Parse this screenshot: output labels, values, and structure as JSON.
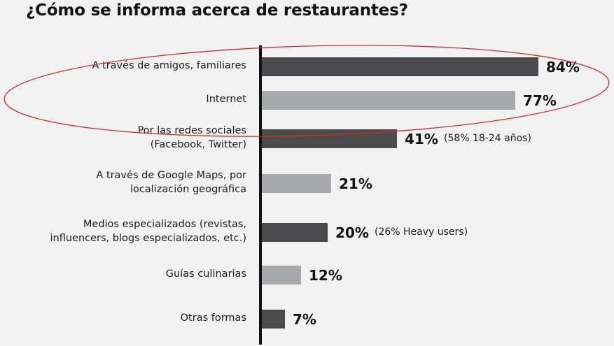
{
  "title": "¿Cómo se informa acerca de restaurantes?",
  "colors": {
    "dark_bar": "#4b4b4d",
    "light_bar": "#a7a9ac",
    "highlight_ellipse": "#d9262c",
    "background": "#f2f2f2"
  },
  "rows": [
    {
      "label_line1": "A través de amigos, familiares",
      "label_line2": "",
      "value_label": "84%",
      "note": ""
    },
    {
      "label_line1": "Internet",
      "label_line2": "",
      "value_label": "77%",
      "note": ""
    },
    {
      "label_line1": "Por las redes sociales",
      "label_line2": "(Facebook, Twitter)",
      "value_label": "41%",
      "note": "(58% 18-24 años)"
    },
    {
      "label_line1": "A través de Google Maps, por",
      "label_line2": "localización geográfica",
      "value_label": "21%",
      "note": ""
    },
    {
      "label_line1": "Medios especializados (revistas,",
      "label_line2": "influencers, blogs especializados, etc.)",
      "value_label": "20%",
      "note": "(26% Heavy users)"
    },
    {
      "label_line1": "Guías culinarias",
      "label_line2": "",
      "value_label": "12%",
      "note": ""
    },
    {
      "label_line1": "Otras formas",
      "label_line2": "",
      "value_label": "7%",
      "note": ""
    }
  ],
  "chart_data": {
    "type": "bar",
    "orientation": "horizontal",
    "title": "¿Cómo se informa acerca de restaurantes?",
    "categories": [
      "A través de amigos, familiares",
      "Internet",
      "Por las redes sociales (Facebook, Twitter)",
      "A través de Google Maps, por localización geográfica",
      "Medios especializados (revistas, influencers, blogs especializados, etc.)",
      "Guías culinarias",
      "Otras formas"
    ],
    "values": [
      84,
      77,
      41,
      21,
      20,
      12,
      7
    ],
    "unit": "%",
    "annotations": [
      {
        "category": "Por las redes sociales (Facebook, Twitter)",
        "text": "(58% 18-24 años)"
      },
      {
        "category": "Medios especializados (revistas, influencers, blogs especializados, etc.)",
        "text": "(26% Heavy users)"
      },
      {
        "type": "ellipse-highlight",
        "covers": [
          "A través de amigos, familiares",
          "Internet"
        ]
      }
    ],
    "bar_colors": [
      "#4b4b4d",
      "#a7a9ac",
      "#4b4b4d",
      "#a7a9ac",
      "#4b4b4d",
      "#a7a9ac",
      "#4b4b4d"
    ],
    "xlabel": "",
    "ylabel": "",
    "xlim": [
      0,
      100
    ],
    "grid": false,
    "legend": null
  }
}
